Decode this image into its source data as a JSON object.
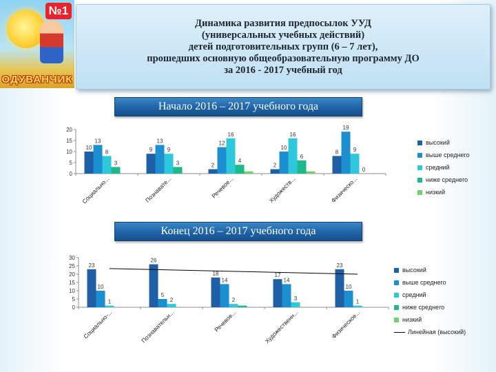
{
  "header": {
    "badge": "№1",
    "brand": "ОДУВАНЧИК",
    "title_lines": [
      "Динамика развития предпосылок УУД",
      "(универсальных учебных действий)",
      "детей подготовительных групп (6 – 7 лет),",
      "прошедших основную общеобразовательную программу ДО",
      "за  2016 - 2017 учебный год"
    ]
  },
  "banners": {
    "start": "Начало 2016 – 2017 учебного года",
    "end": "Конец 2016 –  2017 учебного года"
  },
  "colors": {
    "series": [
      "#1f5fa6",
      "#1b8fd0",
      "#2ec8dc",
      "#1fb88a",
      "#6fd26a"
    ],
    "axis": "#8c8c8c"
  },
  "chart_data": [
    {
      "type": "bar",
      "title": "",
      "categories": [
        "Социально...",
        "Познавате...",
        "Речевое...",
        "Художеств...",
        "Физическо..."
      ],
      "series": [
        {
          "name": "высокий",
          "values": [
            10,
            9,
            2,
            2,
            8
          ]
        },
        {
          "name": "выше среднего",
          "values": [
            13,
            13,
            12,
            10,
            19
          ]
        },
        {
          "name": "средний",
          "values": [
            8,
            9,
            16,
            16,
            9
          ]
        },
        {
          "name": "ниже среднего",
          "values": [
            3,
            3,
            4,
            6,
            0
          ]
        },
        {
          "name": "низкий",
          "values": [
            0,
            0,
            1,
            1,
            0
          ]
        }
      ],
      "data_labels": [
        [
          "10",
          "9",
          "2",
          "2",
          "8"
        ],
        [
          "13",
          "13",
          "12",
          "10",
          "19"
        ],
        [
          "8",
          "9",
          "16",
          "16",
          "9"
        ],
        [
          "3",
          "3",
          "4",
          "6",
          "0"
        ],
        [
          "",
          "",
          "",
          "",
          ""
        ]
      ],
      "ylim": [
        0,
        20
      ],
      "yticks": [
        0,
        5,
        10,
        15,
        20
      ],
      "legend_position": "right"
    },
    {
      "type": "bar",
      "title": "",
      "categories": [
        "Социально-...",
        "Познавательн...",
        "Речевое...",
        "Художественн...",
        "Физическое..."
      ],
      "series": [
        {
          "name": "высокий",
          "values": [
            23,
            26,
            18,
            17,
            23
          ]
        },
        {
          "name": "выше среднего",
          "values": [
            10,
            5,
            14,
            14,
            10
          ]
        },
        {
          "name": "средний",
          "values": [
            1,
            2,
            2,
            3,
            1
          ]
        },
        {
          "name": "ниже среднего",
          "values": [
            0,
            0,
            1,
            0,
            0
          ]
        },
        {
          "name": "низкий",
          "values": [
            0,
            0,
            0,
            0,
            0
          ]
        }
      ],
      "data_labels": [
        [
          "23",
          "26",
          "18",
          "17",
          "23"
        ],
        [
          "10",
          "5",
          "14",
          "14",
          "10"
        ],
        [
          "1",
          "2",
          "2",
          "3",
          "1"
        ],
        [
          "",
          "",
          "",
          "",
          ""
        ],
        [
          "",
          "",
          "",
          "",
          ""
        ]
      ],
      "trendline": {
        "name": "Линейная (высокий)",
        "start": 23.4,
        "end": 20.0
      },
      "ylim": [
        0,
        30
      ],
      "yticks": [
        0,
        5,
        10,
        15,
        20,
        25,
        30
      ],
      "legend_position": "right"
    }
  ]
}
